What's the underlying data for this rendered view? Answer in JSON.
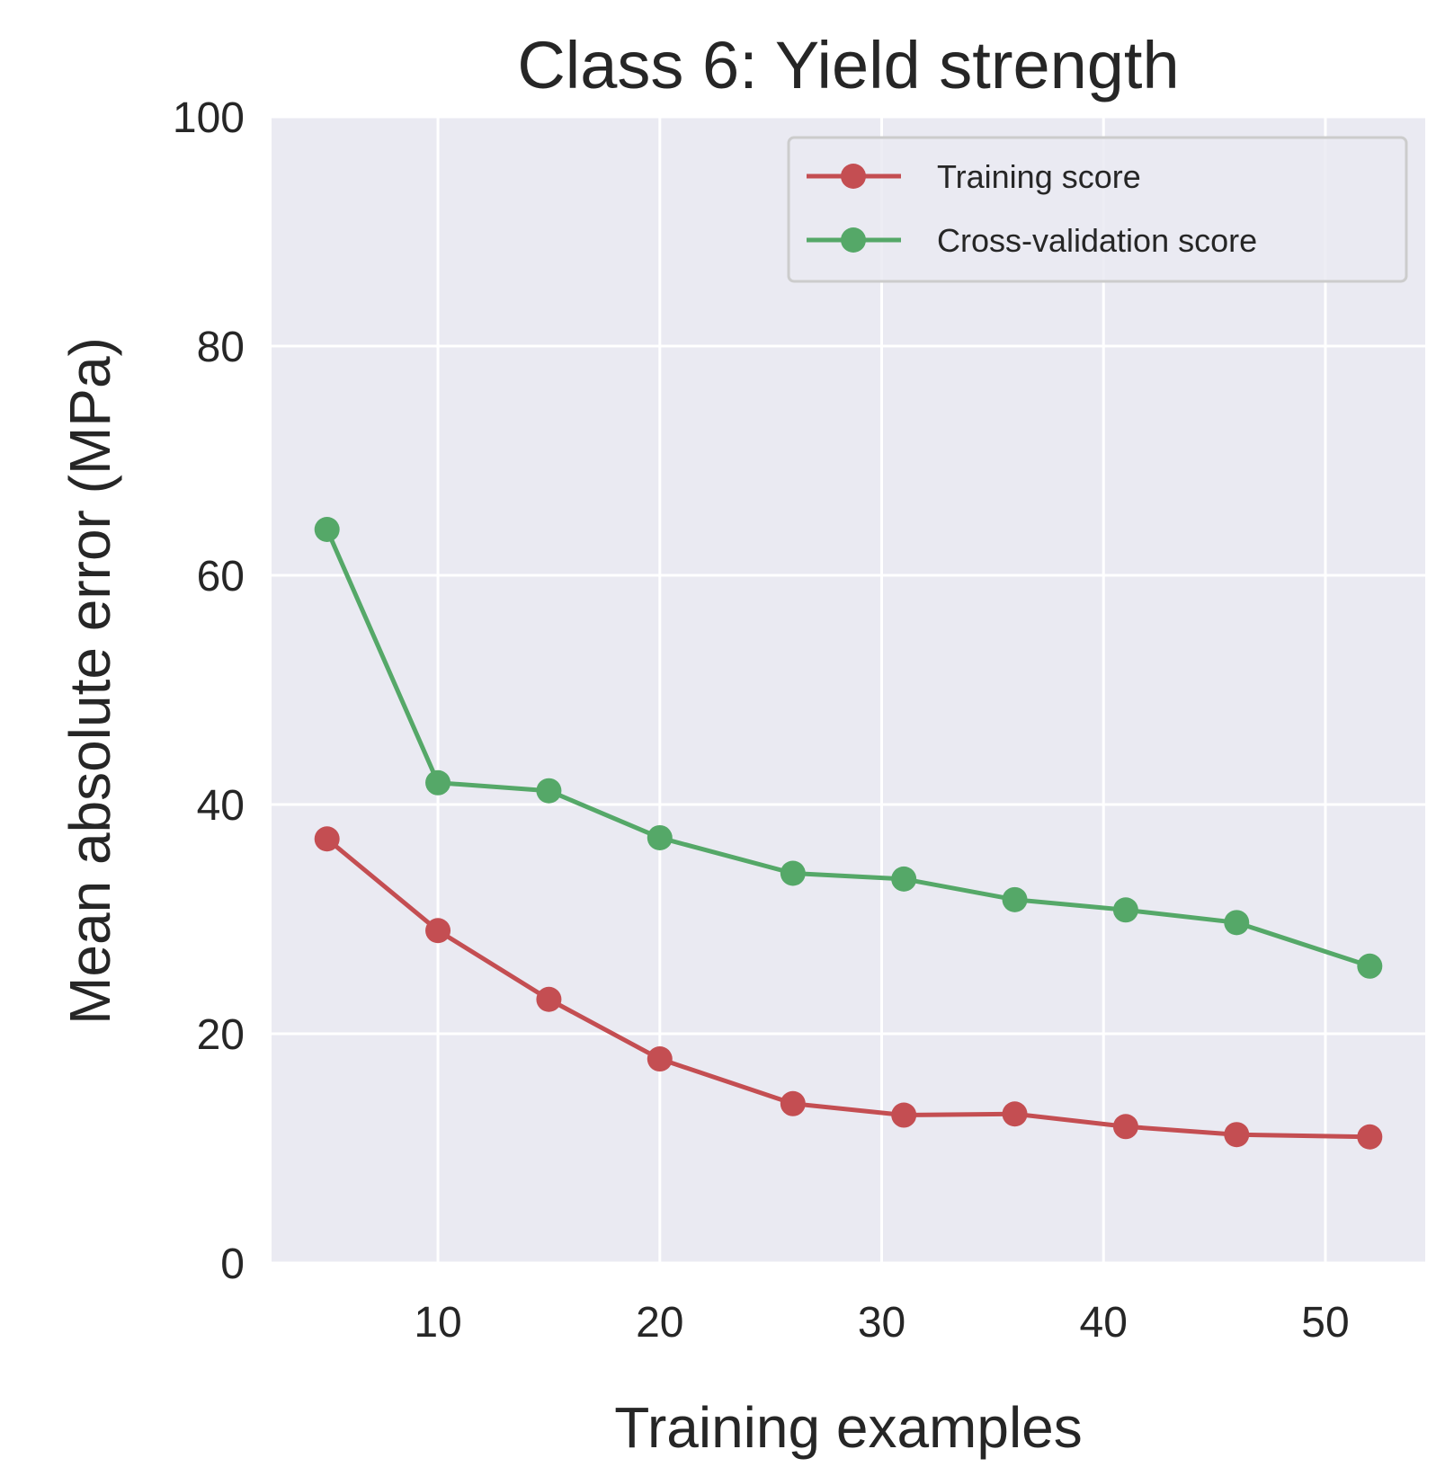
{
  "chart_data": {
    "type": "line",
    "title": "Class 6: Yield strength",
    "xlabel": "Training examples",
    "ylabel": "Mean absolute error (MPa)",
    "xlim": [
      2.5,
      54.5
    ],
    "ylim": [
      0,
      100
    ],
    "x_ticks": [
      10,
      20,
      30,
      40,
      50
    ],
    "y_ticks": [
      0,
      20,
      40,
      60,
      80,
      100
    ],
    "grid": true,
    "legend_position": "top-right",
    "plot_background": "#eaeaf2",
    "grid_color": "#ffffff",
    "text_color": "#262626",
    "x": [
      5,
      10,
      15,
      20,
      26,
      31,
      36,
      41,
      46,
      52
    ],
    "series": [
      {
        "name": "Training score",
        "color": "#c44e52",
        "marker": "circle",
        "values": [
          37.0,
          29.0,
          23.0,
          17.8,
          13.9,
          12.9,
          13.0,
          11.9,
          11.2,
          11.0
        ]
      },
      {
        "name": "Cross-validation score",
        "color": "#55a868",
        "marker": "circle",
        "values": [
          64.0,
          41.9,
          41.2,
          37.1,
          34.0,
          33.5,
          31.7,
          30.8,
          29.7,
          25.9
        ]
      }
    ]
  }
}
